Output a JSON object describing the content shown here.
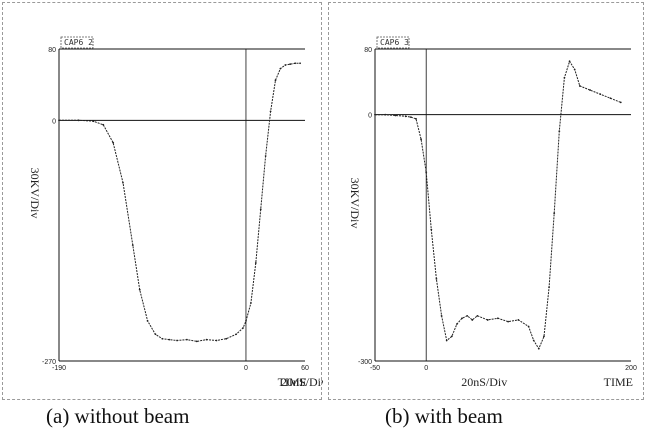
{
  "chart_data": [
    {
      "type": "line",
      "id": "a",
      "tag": "CAP6 2",
      "ylabel": "30KV/Div",
      "xlabel": "20nS/Div",
      "axis_word": "TIME",
      "xlim": [
        -190,
        60
      ],
      "ylim": [
        -270,
        80
      ],
      "xticks": [
        "-190",
        "0",
        "60"
      ],
      "yticks": [
        "80",
        "0",
        "-270"
      ],
      "series": [
        {
          "x": [
            -190,
            -170,
            -155,
            -145,
            -135,
            -125,
            -115,
            -108,
            -100,
            -92,
            -85,
            -78,
            -70,
            -60,
            -50,
            -40,
            -30,
            -20,
            -10,
            -3,
            0,
            5,
            10,
            15,
            20,
            25,
            30,
            35,
            40,
            45,
            50,
            55
          ],
          "y": [
            0,
            0,
            -1,
            -5,
            -25,
            -70,
            -140,
            -190,
            -225,
            -240,
            -245,
            -246,
            -247,
            -246,
            -248,
            -246,
            -247,
            -245,
            -240,
            -233,
            -225,
            -205,
            -160,
            -100,
            -40,
            10,
            45,
            58,
            62,
            63,
            64,
            64
          ]
        }
      ]
    },
    {
      "type": "line",
      "id": "b",
      "tag": "CAP6 3",
      "ylabel": "30KV/Div",
      "xlabel": "20nS/Div",
      "axis_word": "TIME",
      "xlim": [
        -50,
        200
      ],
      "ylim": [
        -300,
        80
      ],
      "xticks": [
        "-50",
        "0",
        "200"
      ],
      "yticks": [
        "80",
        "0",
        "-300"
      ],
      "series": [
        {
          "x": [
            -50,
            -40,
            -30,
            -20,
            -15,
            -10,
            -5,
            0,
            5,
            10,
            15,
            20,
            25,
            30,
            35,
            40,
            45,
            50,
            60,
            70,
            80,
            90,
            100,
            105,
            110,
            115,
            120,
            125,
            130,
            135,
            140,
            145,
            150,
            160,
            170,
            180,
            190
          ],
          "y": [
            0,
            0,
            -1,
            -2,
            -3,
            -5,
            -30,
            -70,
            -140,
            -200,
            -245,
            -275,
            -270,
            -255,
            -248,
            -245,
            -250,
            -245,
            -250,
            -248,
            -252,
            -250,
            -258,
            -275,
            -285,
            -270,
            -210,
            -120,
            -20,
            45,
            65,
            55,
            35,
            30,
            25,
            20,
            15
          ]
        }
      ]
    }
  ],
  "captions": {
    "a": "(a) without beam",
    "b": "(b) with beam"
  }
}
